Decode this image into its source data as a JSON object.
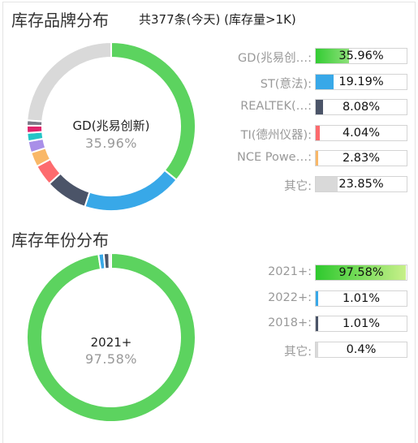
{
  "brand_section": {
    "title": "库存品牌分布",
    "subtitle": "共377条(今天)  (库存量>1K)"
  },
  "year_section": {
    "title": "库存年份分布"
  },
  "chart_data": [
    {
      "type": "pie",
      "title": "库存品牌分布",
      "center": {
        "name": "GD(兆易创新)",
        "percent": "35.96%"
      },
      "slices": [
        {
          "label": "GD(兆易创…:",
          "value": 35.96,
          "text": "35.96%",
          "color": "#5cd35f",
          "legend": true
        },
        {
          "label": "ST(意法):",
          "value": 19.19,
          "text": "19.19%",
          "color": "#38a8e8",
          "legend": true
        },
        {
          "label": "REALTEK(…:",
          "value": 8.08,
          "text": "8.08%",
          "color": "#4b5468",
          "legend": true
        },
        {
          "label": "",
          "value": 4.04,
          "text": "",
          "color": "#fd6b6e",
          "legend": false
        },
        {
          "label": "",
          "value": 2.83,
          "text": "",
          "color": "#f9b868",
          "legend": false
        },
        {
          "label": "",
          "value": 2.2,
          "text": "",
          "color": "#a98fe8",
          "legend": false
        },
        {
          "label": "",
          "value": 1.6,
          "text": "",
          "color": "#24c5c7",
          "legend": false
        },
        {
          "label": "",
          "value": 1.4,
          "text": "",
          "color": "#e0246c",
          "legend": false
        },
        {
          "label": "",
          "value": 1.0,
          "text": "",
          "color": "#7a7a88",
          "legend": false
        },
        {
          "label": "其它:",
          "value": 23.85,
          "text": "23.85%",
          "color": "#d9d9d9",
          "legend": true
        }
      ],
      "extra_legend": [
        {
          "label": "TI(德州仪器):",
          "value": 4.04,
          "text": "4.04%",
          "color": "#fd6b6e"
        },
        {
          "label": "NCE Powe…:",
          "value": 2.83,
          "text": "2.83%",
          "color": "#f9b868"
        }
      ]
    },
    {
      "type": "pie",
      "title": "库存年份分布",
      "center": {
        "name": "2021+",
        "percent": "97.58%"
      },
      "slices": [
        {
          "label": "2021+:",
          "value": 97.58,
          "text": "97.58%",
          "color": "#5cd35f"
        },
        {
          "label": "2022+:",
          "value": 1.01,
          "text": "1.01%",
          "color": "#38a8e8"
        },
        {
          "label": "2018+:",
          "value": 1.01,
          "text": "1.01%",
          "color": "#4b5468"
        },
        {
          "label": "其它:",
          "value": 0.4,
          "text": "0.4%",
          "color": "#d9d9d9"
        }
      ]
    }
  ]
}
